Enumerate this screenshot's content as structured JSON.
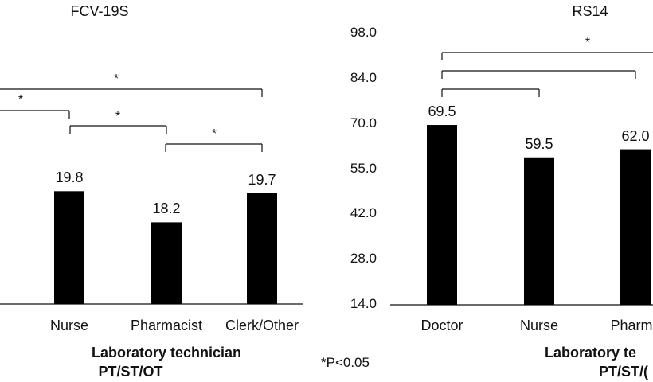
{
  "chart_data": [
    {
      "type": "bar",
      "title": "FCV-19S",
      "categories": [
        "Nurse",
        "Pharmacist",
        "Clerk/Other"
      ],
      "values": [
        19.8,
        18.2,
        19.7
      ],
      "data_labels": [
        "19.8",
        "18.2",
        "19.7"
      ],
      "ylim": [
        14,
        28
      ],
      "brackets": [
        "*",
        "*",
        "*",
        "*"
      ],
      "group_label_lines": [
        "Laboratory technician",
        "PT/ST/OT"
      ]
    },
    {
      "type": "bar",
      "title": "RS14",
      "categories": [
        "Doctor",
        "Nurse",
        "Pharma"
      ],
      "values": [
        69.5,
        59.5,
        62.0
      ],
      "data_labels": [
        "69.5",
        "59.5",
        "62.0"
      ],
      "yticks": [
        "14.0",
        "28.0",
        "42.0",
        "55.0",
        "70.0",
        "84.0",
        "98.0"
      ],
      "ylim": [
        14,
        98
      ],
      "brackets": [
        "*",
        "",
        ""
      ],
      "group_label_lines": [
        "Laboratory te",
        "PT/ST/("
      ]
    }
  ],
  "footnote": "*P<0.05"
}
